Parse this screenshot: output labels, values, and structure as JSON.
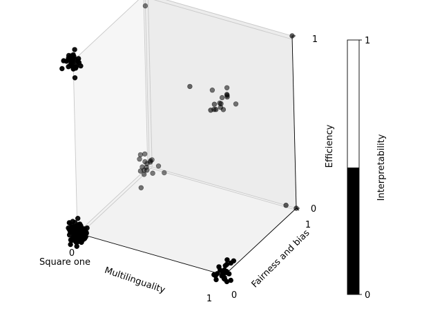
{
  "chart_data": {
    "type": "scatter",
    "projection": "3d",
    "axes": {
      "x": {
        "label": "Multilinguality",
        "range": [
          0,
          1
        ],
        "ticks": [
          "0",
          "1"
        ]
      },
      "y": {
        "label": "Fairness and bias",
        "range": [
          0,
          1
        ],
        "ticks": [
          "0",
          "1"
        ]
      },
      "z": {
        "label": "Efficiency",
        "range": [
          0,
          1
        ],
        "ticks": [
          "0",
          "1"
        ]
      }
    },
    "color_axis": {
      "label": "Interpretability",
      "range": [
        0,
        1
      ],
      "ticks": [
        "0",
        "1"
      ],
      "colors": [
        "#000000",
        "#ffffff"
      ],
      "threshold": 0.5
    },
    "annotations": [
      {
        "text": "Square one",
        "at": [
          0,
          0,
          0
        ]
      }
    ],
    "clusters": [
      {
        "center": [
          0,
          0,
          0
        ],
        "spread": 0.03,
        "count": 95,
        "interpretability": 0
      },
      {
        "center": [
          0,
          0,
          1
        ],
        "spread": 0.03,
        "count": 32,
        "interpretability": 0
      },
      {
        "center": [
          1,
          0,
          0
        ],
        "spread": 0.03,
        "count": 26,
        "interpretability": 0
      },
      {
        "center": [
          0,
          1,
          0
        ],
        "spread": 0.035,
        "count": 18,
        "interpretability": 0
      },
      {
        "center": [
          0.5,
          1,
          0.5
        ],
        "spread": 0.05,
        "count": 16,
        "interpretability": 0
      }
    ],
    "points": [
      {
        "x": 0.0,
        "y": 1.0,
        "z": 1.0,
        "interpretability": 0
      },
      {
        "x": 0.0,
        "y": 1.0,
        "z": 0.93,
        "interpretability": 0
      },
      {
        "x": 1.0,
        "y": 1.0,
        "z": 1.0,
        "interpretability": 0
      },
      {
        "x": 1.0,
        "y": 1.0,
        "z": 0.0,
        "interpretability": 0
      },
      {
        "x": 0.93,
        "y": 1.0,
        "z": 0.0,
        "interpretability": 0
      }
    ]
  }
}
